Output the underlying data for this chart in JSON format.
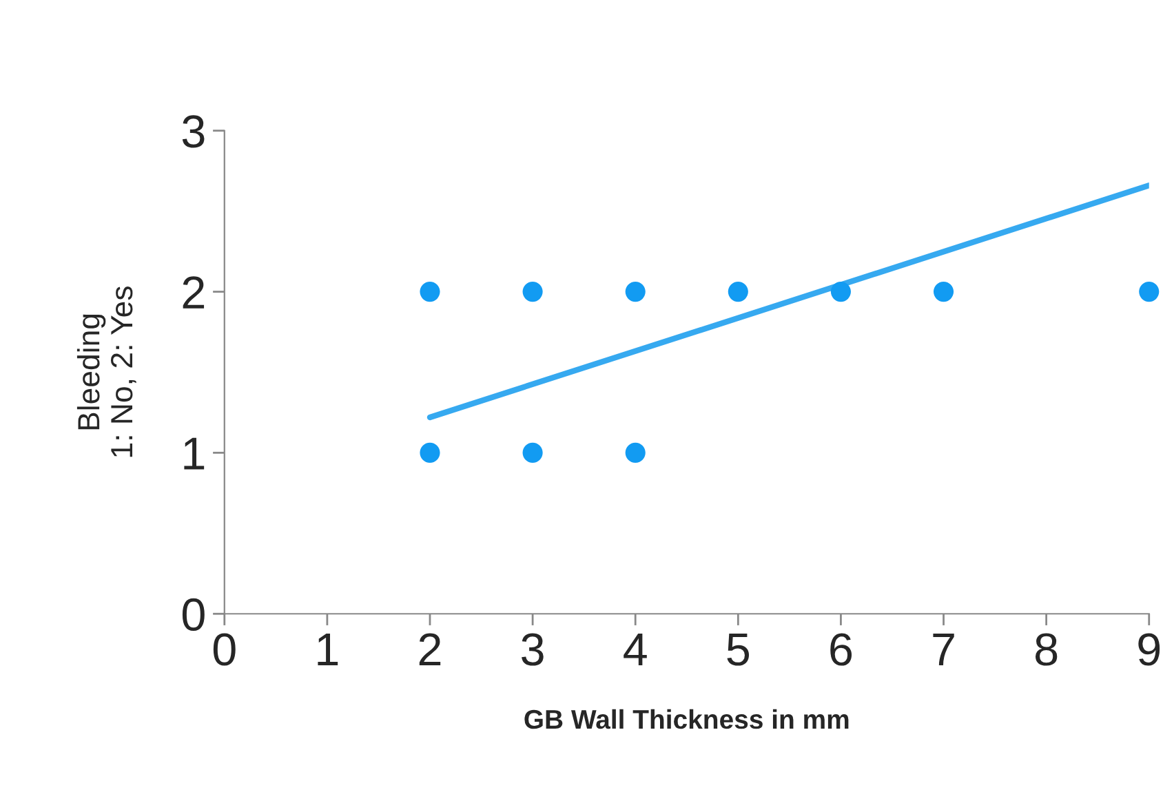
{
  "chart_data": {
    "type": "scatter",
    "xlabel": "GB Wall Thickness in mm",
    "ylabel": "Bleeding\n1: No, 2: Yes",
    "xlim": [
      0,
      9
    ],
    "ylim": [
      0,
      3
    ],
    "xticks": [
      0,
      1,
      2,
      3,
      4,
      5,
      6,
      7,
      8,
      9
    ],
    "yticks": [
      0,
      1,
      2,
      3
    ],
    "grid": false,
    "legend": false,
    "series": [
      {
        "marker": "circle",
        "color": "#129bf2",
        "x": [
          2,
          3,
          4,
          5,
          6,
          7,
          9,
          2,
          3,
          4
        ],
        "values": [
          2,
          2,
          2,
          2,
          2,
          2,
          2,
          1,
          1,
          1
        ]
      },
      {
        "type": "line",
        "color": "#36a9f0",
        "x": [
          2,
          9
        ],
        "values": [
          1.22,
          2.66
        ]
      }
    ]
  }
}
